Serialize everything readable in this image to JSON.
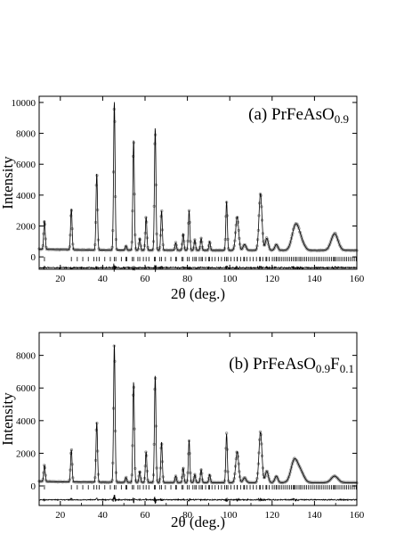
{
  "chart_data": [
    {
      "type": "line",
      "panel": "a",
      "title": "(a) PrFeAsO",
      "title_subscript": "0.9",
      "title_tail_main": "",
      "title_tail_sub": "",
      "xlabel": "2θ (deg.)",
      "ylabel": "Intensity",
      "xlim": [
        10,
        160
      ],
      "ylim": [
        -800,
        10400
      ],
      "xticks": [
        20,
        40,
        60,
        80,
        100,
        120,
        140,
        160
      ],
      "yticks": [
        0,
        2000,
        4000,
        6000,
        8000,
        10000
      ],
      "background": 420,
      "peaks": [
        {
          "x": 12.5,
          "y": 2300
        },
        {
          "x": 25.2,
          "y": 3100
        },
        {
          "x": 37.2,
          "y": 5400
        },
        {
          "x": 45.5,
          "y": 10100
        },
        {
          "x": 51.0,
          "y": 700
        },
        {
          "x": 54.6,
          "y": 7600
        },
        {
          "x": 57.5,
          "y": 1200
        },
        {
          "x": 60.5,
          "y": 2600
        },
        {
          "x": 64.8,
          "y": 8400
        },
        {
          "x": 67.8,
          "y": 3000
        },
        {
          "x": 74.5,
          "y": 900
        },
        {
          "x": 78.0,
          "y": 1500
        },
        {
          "x": 80.8,
          "y": 3000
        },
        {
          "x": 83.5,
          "y": 1100
        },
        {
          "x": 86.5,
          "y": 1200
        },
        {
          "x": 90.5,
          "y": 1000
        },
        {
          "x": 98.5,
          "y": 3600
        },
        {
          "x": 103.5,
          "y": 2600
        },
        {
          "x": 107.0,
          "y": 800
        },
        {
          "x": 114.5,
          "y": 4100
        },
        {
          "x": 117.5,
          "y": 1200
        },
        {
          "x": 122.0,
          "y": 800
        },
        {
          "x": 131.0,
          "y": 1950
        },
        {
          "x": 133.5,
          "y": 1000
        },
        {
          "x": 149.5,
          "y": 1500
        }
      ],
      "series": [
        {
          "style": "observed",
          "color": "#9a9a9a"
        },
        {
          "style": "calculated",
          "color": "#000000"
        },
        {
          "style": "difference",
          "color": "#000000",
          "offset": -700
        },
        {
          "style": "bragg-positions",
          "color": "#000000"
        }
      ]
    },
    {
      "type": "line",
      "panel": "b",
      "title": "(b) PrFeAsO",
      "title_subscript": "0.9",
      "title_tail_main": "F",
      "title_tail_sub": "0.1",
      "xlabel": "2θ (deg.)",
      "ylabel": "Intensity",
      "xlim": [
        10,
        160
      ],
      "ylim": [
        -1200,
        9400
      ],
      "xticks": [
        20,
        40,
        60,
        80,
        100,
        120,
        140,
        160
      ],
      "yticks": [
        0,
        2000,
        4000,
        6000,
        8000
      ],
      "background": 200,
      "peaks": [
        {
          "x": 12.5,
          "y": 1200
        },
        {
          "x": 25.2,
          "y": 2200
        },
        {
          "x": 37.2,
          "y": 3900
        },
        {
          "x": 45.5,
          "y": 8700
        },
        {
          "x": 51.0,
          "y": 500
        },
        {
          "x": 54.6,
          "y": 6400
        },
        {
          "x": 57.5,
          "y": 900
        },
        {
          "x": 60.5,
          "y": 2100
        },
        {
          "x": 64.8,
          "y": 6800
        },
        {
          "x": 67.8,
          "y": 2700
        },
        {
          "x": 74.5,
          "y": 600
        },
        {
          "x": 78.0,
          "y": 1100
        },
        {
          "x": 80.8,
          "y": 2800
        },
        {
          "x": 83.5,
          "y": 700
        },
        {
          "x": 86.5,
          "y": 1000
        },
        {
          "x": 90.5,
          "y": 700
        },
        {
          "x": 98.5,
          "y": 3200
        },
        {
          "x": 103.5,
          "y": 2100
        },
        {
          "x": 107.0,
          "y": 500
        },
        {
          "x": 114.5,
          "y": 3300
        },
        {
          "x": 117.5,
          "y": 900
        },
        {
          "x": 122.0,
          "y": 600
        },
        {
          "x": 130.5,
          "y": 1550
        },
        {
          "x": 133.5,
          "y": 800
        },
        {
          "x": 149.5,
          "y": 600
        }
      ],
      "series": [
        {
          "style": "observed",
          "color": "#9a9a9a"
        },
        {
          "style": "calculated",
          "color": "#000000"
        },
        {
          "style": "difference",
          "color": "#000000",
          "offset": -850
        },
        {
          "style": "bragg-positions",
          "color": "#000000"
        }
      ]
    }
  ]
}
